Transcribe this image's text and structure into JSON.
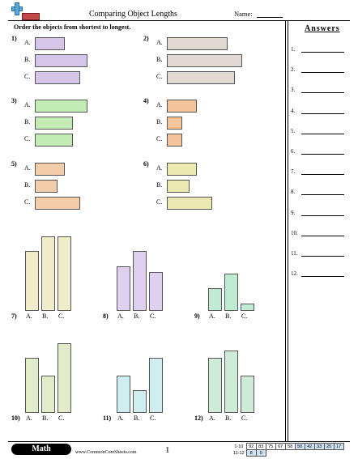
{
  "header": {
    "title": "Comparing Object Lengths",
    "name_label": "Name:"
  },
  "instructions": "Order the objects from shortest to longest.",
  "answers": {
    "title": "Answers",
    "numbers": [
      "1.",
      "2.",
      "3.",
      "4.",
      "5.",
      "6.",
      "7.",
      "8.",
      "9.",
      "10.",
      "11.",
      "12."
    ]
  },
  "horizontal_problems": [
    {
      "number": "1)",
      "color": "#d5c5e9",
      "items": [
        {
          "label": "A.",
          "length": 0.33
        },
        {
          "label": "B.",
          "length": 0.58
        },
        {
          "label": "C.",
          "length": 0.5
        }
      ]
    },
    {
      "number": "2)",
      "color": "#e0dad2",
      "items": [
        {
          "label": "A.",
          "length": 0.67
        },
        {
          "label": "B.",
          "length": 0.83
        },
        {
          "label": "C.",
          "length": 0.75
        }
      ]
    },
    {
      "number": "3)",
      "color": "#c2ebb6",
      "items": [
        {
          "label": "A.",
          "length": 0.58
        },
        {
          "label": "B.",
          "length": 0.42
        },
        {
          "label": "C.",
          "length": 0.42
        }
      ]
    },
    {
      "number": "4)",
      "color": "#f4c39a",
      "items": [
        {
          "label": "A.",
          "length": 0.33
        },
        {
          "label": "B.",
          "length": 0.17
        },
        {
          "label": "C.",
          "length": 0.17
        }
      ]
    },
    {
      "number": "5)",
      "color": "#f3cca9",
      "items": [
        {
          "label": "A.",
          "length": 0.33
        },
        {
          "label": "B.",
          "length": 0.25
        },
        {
          "label": "C.",
          "length": 0.5
        }
      ]
    },
    {
      "number": "6)",
      "color": "#ece8b1",
      "items": [
        {
          "label": "A.",
          "length": 0.33
        },
        {
          "label": "B.",
          "length": 0.25
        },
        {
          "label": "C.",
          "length": 0.5
        }
      ]
    }
  ],
  "vertical_problems": [
    {
      "number": "7)",
      "color": "#f0ecc9",
      "items": [
        {
          "label": "A.",
          "length": 0.8
        },
        {
          "label": "B.",
          "length": 1.0
        },
        {
          "label": "C.",
          "length": 1.0
        }
      ]
    },
    {
      "number": "8)",
      "color": "#ddd0ef",
      "items": [
        {
          "label": "A.",
          "length": 0.6
        },
        {
          "label": "B.",
          "length": 0.8
        },
        {
          "label": "C.",
          "length": 0.52
        }
      ]
    },
    {
      "number": "9)",
      "color": "#c0ebd3",
      "items": [
        {
          "label": "A.",
          "length": 0.3
        },
        {
          "label": "B.",
          "length": 0.5
        },
        {
          "label": "C.",
          "length": 0.1
        }
      ]
    },
    {
      "number": "10)",
      "color": "#e3ecc9",
      "items": [
        {
          "label": "A.",
          "length": 0.74
        },
        {
          "label": "B.",
          "length": 0.5
        },
        {
          "label": "C.",
          "length": 0.94
        }
      ]
    },
    {
      "number": "11)",
      "color": "#d0eef0",
      "items": [
        {
          "label": "A.",
          "length": 0.5
        },
        {
          "label": "B.",
          "length": 0.3
        },
        {
          "label": "C.",
          "length": 0.74
        }
      ]
    },
    {
      "number": "12)",
      "color": "#cdebd6",
      "items": [
        {
          "label": "A.",
          "length": 0.74
        },
        {
          "label": "B.",
          "length": 0.84
        },
        {
          "label": "C.",
          "length": 0.5
        }
      ]
    }
  ],
  "footer": {
    "subject": "Math",
    "website": "www.CommonCoreSheets.com",
    "page": "1"
  },
  "score_table": {
    "rows": [
      {
        "range": "1-10",
        "values": [
          "92",
          "83",
          "75",
          "67",
          "58",
          "50",
          "42",
          "33",
          "25",
          "17"
        ]
      },
      {
        "range": "11-12",
        "values": [
          "8",
          "0"
        ]
      }
    ]
  }
}
